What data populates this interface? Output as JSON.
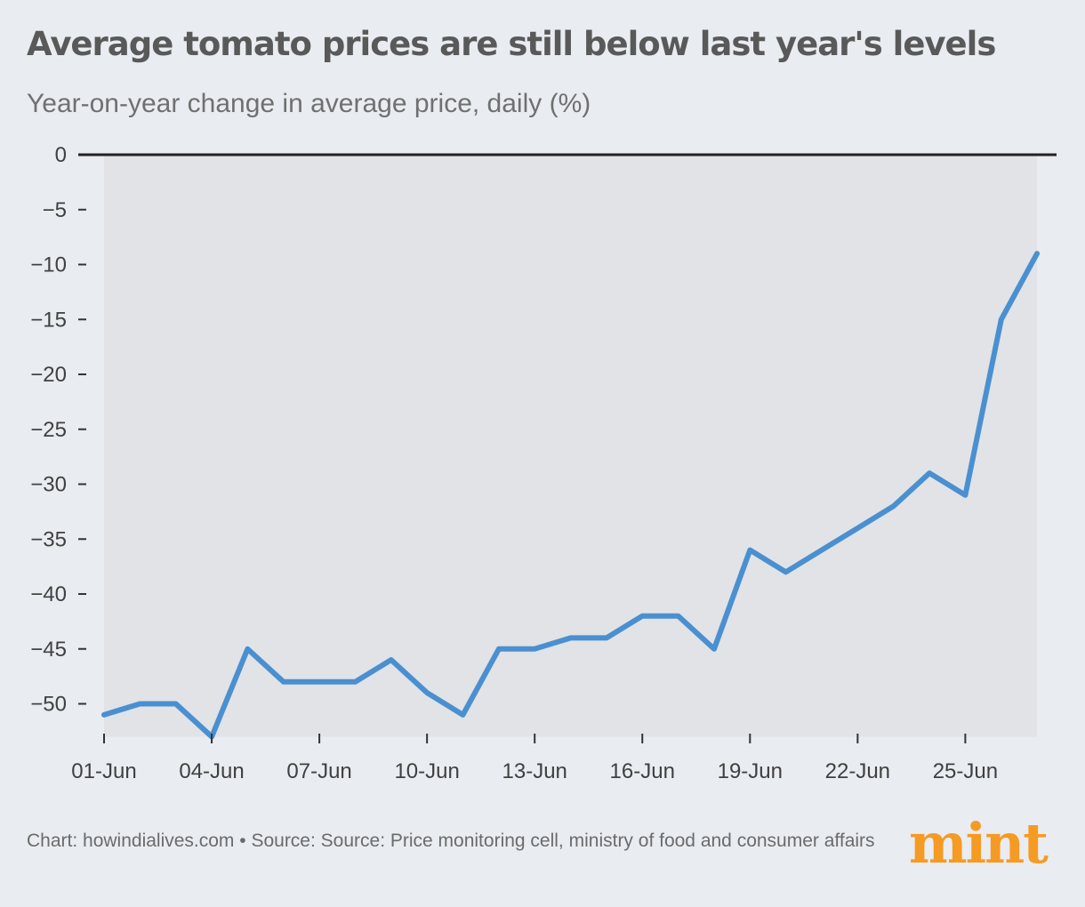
{
  "header": {
    "title": "Average tomato prices are still below last year's levels",
    "subtitle": "Year-on-year change in average price, daily (%)"
  },
  "footer": {
    "source": "Chart: howindialives.com • Source: Source: Price monitoring cell, ministry of food and consumer affairs",
    "logo_text": "mint"
  },
  "colors": {
    "line": "#4a90d0",
    "area": "#e1e3e7",
    "background": "#e9ecf0",
    "logo": "#f59a23"
  },
  "chart_data": {
    "type": "area",
    "x": [
      "01-Jun",
      "02-Jun",
      "03-Jun",
      "04-Jun",
      "05-Jun",
      "06-Jun",
      "07-Jun",
      "08-Jun",
      "09-Jun",
      "10-Jun",
      "11-Jun",
      "12-Jun",
      "13-Jun",
      "14-Jun",
      "15-Jun",
      "16-Jun",
      "17-Jun",
      "18-Jun",
      "19-Jun",
      "20-Jun",
      "21-Jun",
      "22-Jun",
      "23-Jun",
      "24-Jun",
      "25-Jun",
      "26-Jun",
      "27-Jun"
    ],
    "series": [
      {
        "values": [
          -51,
          -50,
          -50,
          -53,
          -45,
          -48,
          -48,
          -48,
          -46,
          -49,
          -51,
          -45,
          -45,
          -44,
          -44,
          -42,
          -42,
          -45,
          -36,
          -38,
          -36,
          -34,
          -32,
          -29,
          -31,
          -15,
          -9
        ]
      }
    ],
    "x_tick_labels": [
      "01-Jun",
      "04-Jun",
      "07-Jun",
      "10-Jun",
      "13-Jun",
      "16-Jun",
      "19-Jun",
      "22-Jun",
      "25-Jun"
    ],
    "y_ticks": [
      0,
      -5,
      -10,
      -15,
      -20,
      -25,
      -30,
      -35,
      -40,
      -45,
      -50
    ],
    "y_tick_labels": [
      "0",
      "−5",
      "−10",
      "−15",
      "−20",
      "−25",
      "−30",
      "−35",
      "−40",
      "−45",
      "−50"
    ],
    "ylim": [
      -53,
      0
    ],
    "grid": false,
    "legend": "none"
  }
}
